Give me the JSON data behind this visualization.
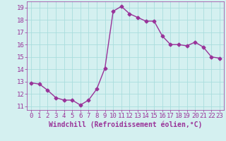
{
  "x": [
    0,
    1,
    2,
    3,
    4,
    5,
    6,
    7,
    8,
    9,
    10,
    11,
    12,
    13,
    14,
    15,
    16,
    17,
    18,
    19,
    20,
    21,
    22,
    23
  ],
  "y": [
    12.9,
    12.8,
    12.3,
    11.7,
    11.5,
    11.5,
    11.1,
    11.5,
    12.4,
    14.1,
    18.7,
    19.1,
    18.5,
    18.2,
    17.9,
    17.9,
    16.7,
    16.0,
    16.0,
    15.9,
    16.2,
    15.8,
    15.0,
    14.9
  ],
  "line_color": "#993399",
  "marker": "D",
  "marker_size": 2.5,
  "bg_color": "#d4f0f0",
  "grid_color": "#aadddd",
  "xlabel": "Windchill (Refroidissement éolien,°C)",
  "xlabel_color": "#993399",
  "tick_color": "#993399",
  "ylim": [
    10.7,
    19.5
  ],
  "xlim": [
    -0.5,
    23.5
  ],
  "yticks": [
    11,
    12,
    13,
    14,
    15,
    16,
    17,
    18,
    19
  ],
  "xticks": [
    0,
    1,
    2,
    3,
    4,
    5,
    6,
    7,
    8,
    9,
    10,
    11,
    12,
    13,
    14,
    15,
    16,
    17,
    18,
    19,
    20,
    21,
    22,
    23
  ],
  "line_width": 1.0,
  "tick_fontsize": 6.5,
  "xlabel_fontsize": 7.0
}
